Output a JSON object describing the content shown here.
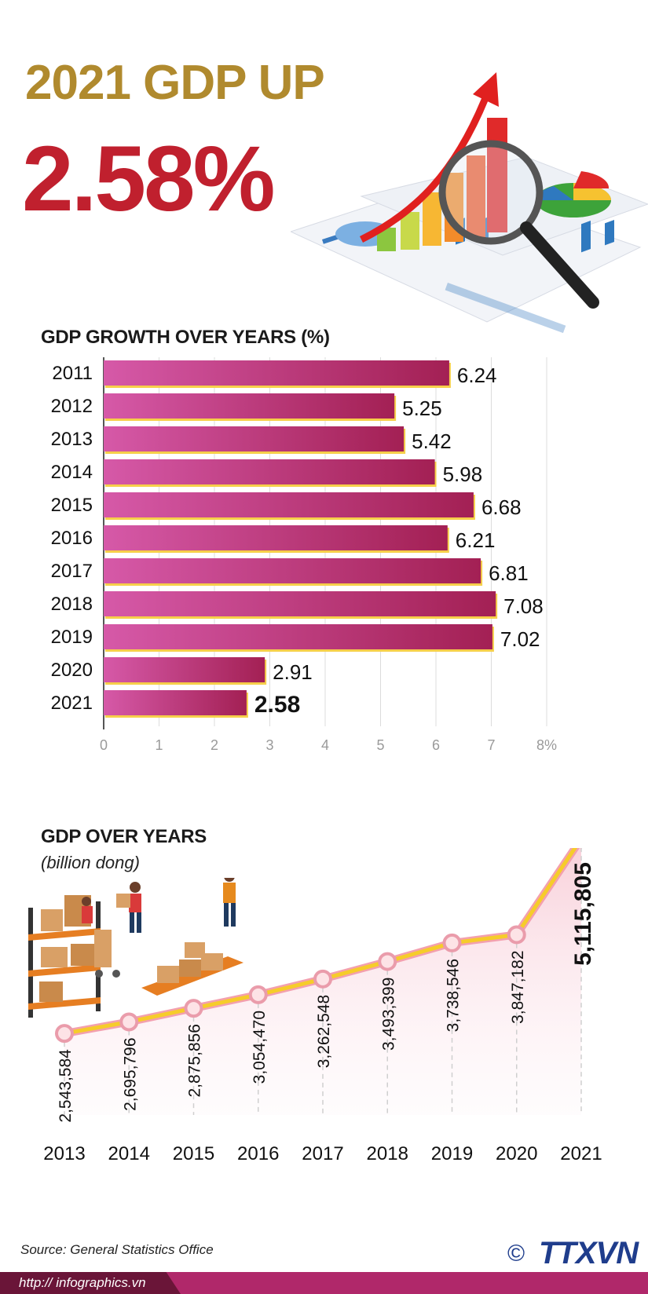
{
  "headline": {
    "title": "2021 GDP UP",
    "value": "2.58%"
  },
  "growth_chart_title": "GDP GROWTH OVER YEARS (%)",
  "gdp_chart_title": "GDP OVER YEARS",
  "gdp_chart_unit": "(billion dong)",
  "source": "Source: General Statistics Office",
  "url": "http:// infographics.vn",
  "copyright": "©",
  "agency": "TTXVN",
  "colors": {
    "gold": "#b08a2e",
    "red": "#c0202e",
    "bar_start": "#d659a8",
    "bar_end": "#a32054",
    "line": "#f6cc2a",
    "marker_fill": "#fde3e6",
    "marker_stroke": "#e99aa8"
  },
  "chart_data": [
    {
      "type": "bar",
      "orientation": "horizontal",
      "title": "GDP GROWTH OVER YEARS (%)",
      "categories": [
        "2011",
        "2012",
        "2013",
        "2014",
        "2015",
        "2016",
        "2017",
        "2018",
        "2019",
        "2020",
        "2021"
      ],
      "values": [
        6.24,
        5.25,
        5.42,
        5.98,
        6.68,
        6.21,
        6.81,
        7.08,
        7.02,
        2.91,
        2.58
      ],
      "value_labels": [
        "6.24",
        "5.25",
        "5.42",
        "5.98",
        "6.68",
        "6.21",
        "6.81",
        "7.08",
        "7.02",
        "2.91",
        "2.58"
      ],
      "xlim": [
        0,
        8
      ],
      "ticks": [
        "0",
        "1",
        "2",
        "3",
        "4",
        "5",
        "6",
        "7",
        "8%"
      ],
      "grid": true
    },
    {
      "type": "line",
      "title": "GDP OVER YEARS",
      "subtitle": "(billion dong)",
      "x": [
        "2013",
        "2014",
        "2015",
        "2016",
        "2017",
        "2018",
        "2019",
        "2020",
        "2021"
      ],
      "values": [
        2543584,
        2695796,
        2875856,
        3054470,
        3262548,
        3493399,
        3738546,
        3847182,
        5115805
      ],
      "value_labels": [
        "2,543,584",
        "2,695,796",
        "2,875,856",
        "3,054,470",
        "3,262,548",
        "3,493,399",
        "3,738,546",
        "3,847,182",
        "5,115,805"
      ],
      "area_fill": true
    }
  ]
}
